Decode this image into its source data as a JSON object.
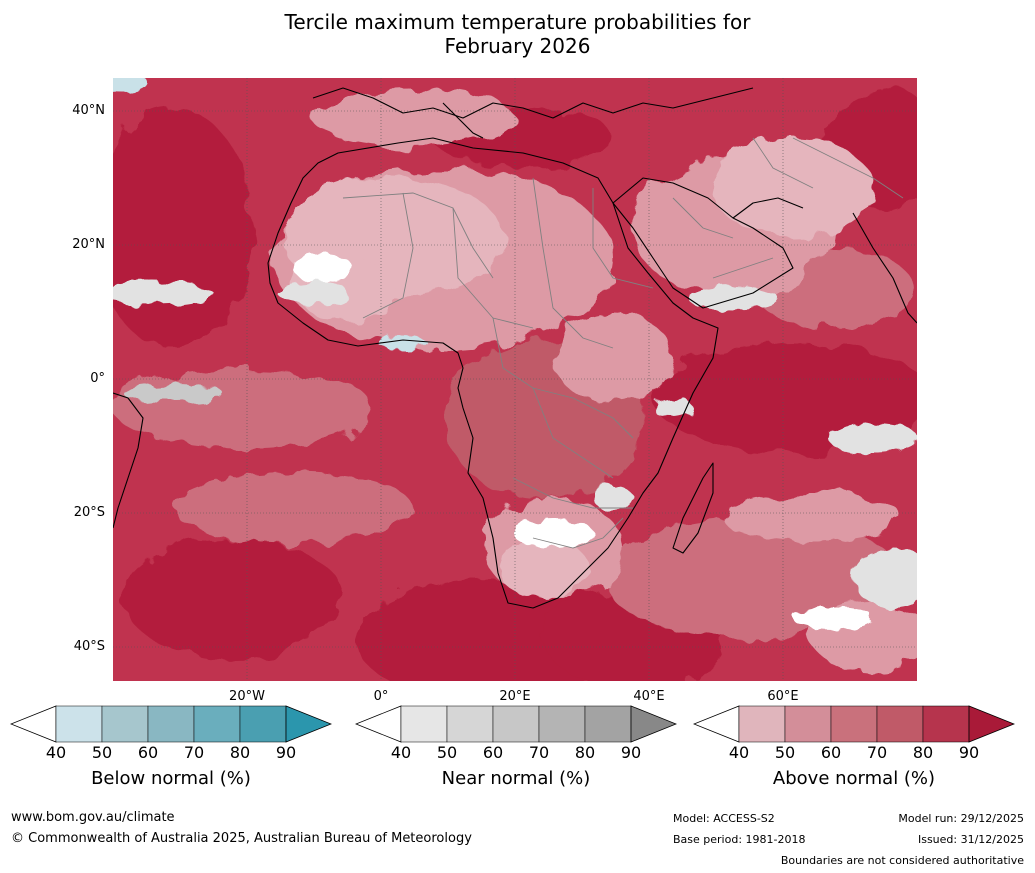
{
  "title": {
    "line1": "Tercile maximum temperature probabilities for",
    "line2": "February 2026"
  },
  "map": {
    "lat_labels": [
      "40°N",
      "20°N",
      "0°",
      "20°S",
      "40°S"
    ],
    "lon_labels": [
      "20°W",
      "0°",
      "20°E",
      "40°E",
      "60°E"
    ],
    "colors": {
      "ocean_base": "#c0334f",
      "strong": "#b31f3c",
      "medium": "#cc6e7d",
      "light": "#dd9aa5",
      "pale": "#e5b5bd",
      "near_normal": "#e2e2e2",
      "below": "#c9e1e8",
      "coast": "#000000",
      "border": "#808080"
    }
  },
  "colorbars": {
    "below": {
      "label": "Below normal (%)",
      "ticks": [
        "40",
        "50",
        "60",
        "70",
        "80",
        "90"
      ],
      "colors": [
        "#cce2ea",
        "#a6c6cd",
        "#89b7c2",
        "#6aaebd",
        "#4a9fb1",
        "#2b96ad"
      ]
    },
    "near": {
      "label": "Near normal (%)",
      "ticks": [
        "40",
        "50",
        "60",
        "70",
        "80",
        "90"
      ],
      "colors": [
        "#e6e6e6",
        "#d6d6d6",
        "#c7c7c7",
        "#b4b4b4",
        "#a3a3a3",
        "#888888"
      ]
    },
    "above": {
      "label": "Above normal (%)",
      "ticks": [
        "40",
        "50",
        "60",
        "70",
        "80",
        "90"
      ],
      "colors": [
        "#e0b5bc",
        "#d38e99",
        "#c9717c",
        "#c05a68",
        "#b6344d",
        "#a91a38"
      ]
    }
  },
  "footer": {
    "website": "www.bom.gov.au/climate",
    "copyright": "© Commonwealth of Australia 2025, Australian Bureau of Meteorology",
    "model": "Model: ACCESS-S2",
    "base_period": "Base period: 1981-2018",
    "model_run": "Model run: 29/12/2025",
    "issued": "Issued: 31/12/2025",
    "disclaimer": "Boundaries are not considered authoritative"
  }
}
